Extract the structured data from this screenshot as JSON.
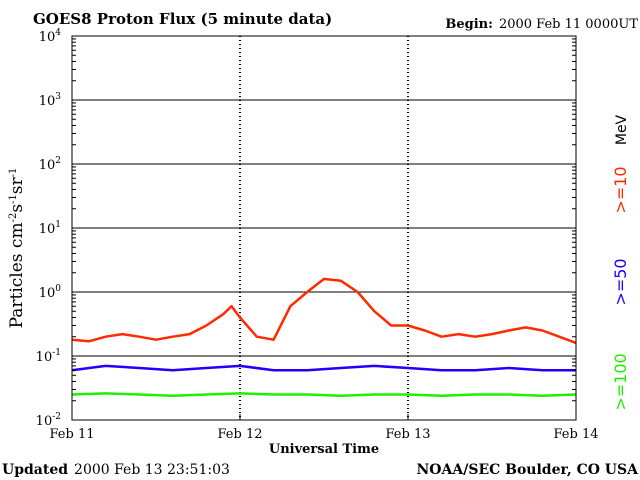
{
  "title": "GOES8 Proton Flux (5 minute data)",
  "begin_label": "Begin:",
  "begin_value": "2000 Feb 11 0000UT",
  "footer": {
    "updated_label": "Updated",
    "updated_value": "2000 Feb 13 23:51:03",
    "source": "NOAA/SEC Boulder, CO USA"
  },
  "chart_data": {
    "type": "line",
    "title": "GOES8 Proton Flux (5 minute data)",
    "xlabel": "Universal Time",
    "ylabel_parts": [
      "Particles cm",
      "-2",
      "s",
      "-1",
      "sr",
      "-1"
    ],
    "y_scale": "log",
    "ylim": [
      0.01,
      10000
    ],
    "y_ticks": [
      {
        "value": 0.01,
        "base": "10",
        "exp": "-2"
      },
      {
        "value": 0.1,
        "base": "10",
        "exp": "-1"
      },
      {
        "value": 1,
        "base": "10",
        "exp": "0"
      },
      {
        "value": 10,
        "base": "10",
        "exp": "1"
      },
      {
        "value": 100,
        "base": "10",
        "exp": "2"
      },
      {
        "value": 1000,
        "base": "10",
        "exp": "3"
      },
      {
        "value": 10000,
        "base": "10",
        "exp": "4"
      }
    ],
    "x_ticks": [
      {
        "value": 0,
        "label": "Feb 11"
      },
      {
        "value": 1,
        "label": "Feb 12"
      },
      {
        "value": 2,
        "label": "Feb 13"
      },
      {
        "value": 3,
        "label": "Feb 14"
      }
    ],
    "grid": true,
    "legend": {
      "placement": "right",
      "unit": "MeV"
    },
    "series": [
      {
        "name": ">=10",
        "color": "#ff2a00",
        "x": [
          0,
          0.1,
          0.2,
          0.3,
          0.4,
          0.5,
          0.6,
          0.7,
          0.8,
          0.9,
          0.95,
          1.0,
          1.1,
          1.2,
          1.3,
          1.4,
          1.5,
          1.6,
          1.7,
          1.8,
          1.9,
          2.0,
          2.1,
          2.2,
          2.3,
          2.4,
          2.5,
          2.6,
          2.7,
          2.8,
          2.9,
          3.0
        ],
        "values": [
          0.18,
          0.17,
          0.2,
          0.22,
          0.2,
          0.18,
          0.2,
          0.22,
          0.3,
          0.45,
          0.6,
          0.4,
          0.2,
          0.18,
          0.6,
          1.0,
          1.6,
          1.5,
          1.0,
          0.5,
          0.3,
          0.3,
          0.25,
          0.2,
          0.22,
          0.2,
          0.22,
          0.25,
          0.28,
          0.25,
          0.2,
          0.16
        ]
      },
      {
        "name": ">=50",
        "color": "#2000ff",
        "x": [
          0,
          0.2,
          0.4,
          0.6,
          0.8,
          1.0,
          1.2,
          1.4,
          1.6,
          1.8,
          2.0,
          2.2,
          2.4,
          2.6,
          2.8,
          3.0
        ],
        "values": [
          0.06,
          0.07,
          0.065,
          0.06,
          0.065,
          0.07,
          0.06,
          0.06,
          0.065,
          0.07,
          0.065,
          0.06,
          0.06,
          0.065,
          0.06,
          0.06
        ]
      },
      {
        "name": ">=100",
        "color": "#22ee00",
        "x": [
          0,
          0.2,
          0.4,
          0.6,
          0.8,
          1.0,
          1.2,
          1.4,
          1.6,
          1.8,
          2.0,
          2.2,
          2.4,
          2.6,
          2.8,
          3.0
        ],
        "values": [
          0.025,
          0.026,
          0.025,
          0.024,
          0.025,
          0.026,
          0.025,
          0.025,
          0.024,
          0.025,
          0.025,
          0.024,
          0.025,
          0.025,
          0.024,
          0.025
        ]
      }
    ]
  }
}
